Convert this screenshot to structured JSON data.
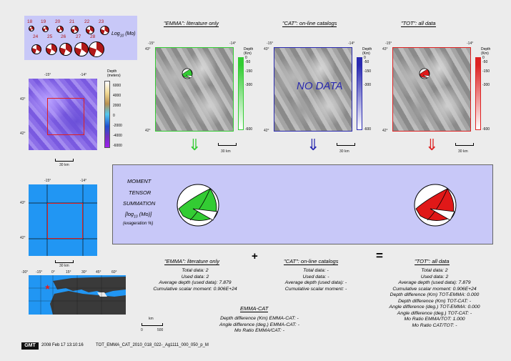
{
  "legend": {
    "magnitudes_top": [
      "18",
      "19",
      "20",
      "21",
      "22",
      "23"
    ],
    "magnitudes_bottom": [
      "24",
      "25",
      "26",
      "27",
      "28"
    ],
    "axis_label": "Log",
    "axis_label_sub": "10",
    "axis_label_unit": "(Mo)"
  },
  "topo_map": {
    "lon_labels": [
      "-15°",
      "-14°"
    ],
    "lat_labels": [
      "42°",
      "43°"
    ],
    "scale_label": "30 km",
    "colorbar_title": "Depth",
    "colorbar_unit": "(meters)",
    "colorbar_ticks": [
      "6000",
      "4000",
      "2000",
      "0",
      "-2000",
      "-4000",
      "-6000"
    ]
  },
  "grid_map": {
    "lon_labels": [
      "-15°",
      "-14°"
    ],
    "lat_labels": [
      "42°",
      "43°"
    ],
    "scale_label": "30 km"
  },
  "panels": [
    {
      "title": "\"EMMA\": literature only",
      "color": "#33cc33",
      "lon_labels": [
        "-15°",
        "-14°"
      ],
      "lat_labels": [
        "43°",
        "42°"
      ],
      "depth_title": "Depth",
      "depth_unit": "(Km)",
      "depth_ticks": [
        "0",
        "-50",
        "-150",
        "-300",
        "-600"
      ],
      "scale_label": "30 km",
      "overlay": "",
      "arrow": "⇓"
    },
    {
      "title": "\"CAT\": on-line catalogs",
      "color": "#2a2ab0",
      "lon_labels": [
        "-15°",
        "-14°"
      ],
      "lat_labels": [
        "43°",
        "42°"
      ],
      "depth_title": "Depth",
      "depth_unit": "(Km)",
      "depth_ticks": [
        "0",
        "-50",
        "-150",
        "-300",
        "-600"
      ],
      "scale_label": "30 km",
      "overlay": "NO DATA",
      "arrow": "⇓"
    },
    {
      "title": "\"TOT\": all data",
      "color": "#dd2222",
      "lon_labels": [
        "-15°",
        "-14°"
      ],
      "lat_labels": [
        "43°",
        "42°"
      ],
      "depth_title": "Depth",
      "depth_unit": "(Km)",
      "depth_ticks": [
        "0",
        "-50",
        "-150",
        "-300",
        "-600"
      ],
      "scale_label": "30 km",
      "overlay": "",
      "arrow": "⇓"
    }
  ],
  "summation": {
    "line1": "MOMENT",
    "line2": "TENSOR",
    "line3": "SUMMATION",
    "line4_pre": "[log",
    "line4_sub": "10",
    "line4_post": " (Mo)]",
    "line5": "(exageration %)"
  },
  "stats": {
    "emma": {
      "title": "\"EMMA\": literature only",
      "lines": [
        "Total data:   2",
        "Used data:   2",
        "Average depth (used data):   7.879",
        "Cumulative scalar moment: 0.906E+24"
      ]
    },
    "plus": "+",
    "cat": {
      "title": "\"CAT\": on-line catalogs",
      "lines": [
        "Total data: -",
        "Used data: -",
        "Average depth (used data): -",
        "Cumulative scalar moment: -"
      ]
    },
    "equals": "=",
    "tot": {
      "title": "\"TOT\": all data",
      "lines": [
        "Total data:   2",
        "Used data:   2",
        "Average depth (used data):   7.879",
        "Cumulative scalar moment: 0.906E+24",
        "Depth difference (Km) TOT-EMMA:   0.000",
        "Depth difference (Km) TOT-CAT: -",
        "Angle difference (deg.) TOT-EMMA:   0.000",
        "Angle difference (deg.) TOT-CAT: -",
        "Mo Ratio EMMA/TOT:   1.000",
        "Mo Ratio CAT/TOT: -"
      ]
    },
    "emma_cat": {
      "title": "EMMA-CAT",
      "lines": [
        "Depth difference (Km) EMMA-CAT: -",
        "Angle difference (deg.) EMMA-CAT: -",
        "Mo Ratio EMMA/CAT: -"
      ]
    }
  },
  "world_map": {
    "lon_labels": [
      "-30°",
      "-15°",
      "0°",
      "15°",
      "30°",
      "45°",
      "60°"
    ],
    "scale_unit": "km",
    "scale_ticks": [
      "0",
      "500"
    ]
  },
  "footer": {
    "logo": "GMT",
    "timestamp": "2008 Feb 17 13:10:16",
    "filename": "TOT_EMMA_CAT_2010_018_022-_Ag1111_000_050_p_M"
  },
  "colors": {
    "emma": "#33cc33",
    "cat": "#2a2ab0",
    "tot": "#dd2222",
    "summation_bg": "#c8c8f8",
    "grid_bg": "#2196f3"
  }
}
